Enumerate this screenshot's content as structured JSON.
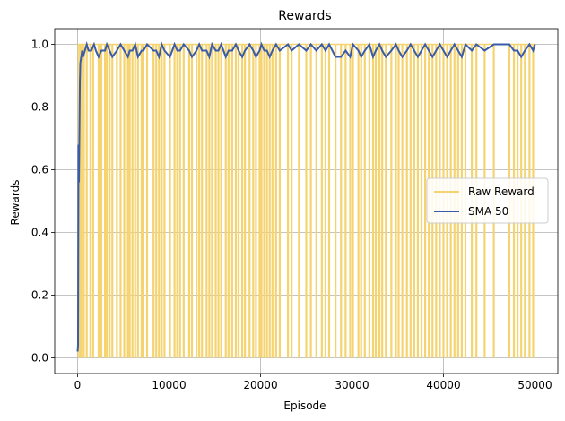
{
  "chart_data": {
    "type": "line",
    "title": "Rewards",
    "xlabel": "Episode",
    "ylabel": "Rewards",
    "xlim": [
      -2500,
      52500
    ],
    "ylim": [
      -0.05,
      1.05
    ],
    "xticks": [
      0,
      10000,
      20000,
      30000,
      40000,
      50000
    ],
    "yticks": [
      0.0,
      0.2,
      0.4,
      0.6,
      0.8,
      1.0
    ],
    "xtick_labels": [
      "0",
      "10000",
      "20000",
      "30000",
      "40000",
      "50000"
    ],
    "ytick_labels": [
      "0.0",
      "0.2",
      "0.4",
      "0.6",
      "0.8",
      "1.0"
    ],
    "grid": true,
    "legend_position": "center-right",
    "series": [
      {
        "name": "Raw Reward",
        "color": "#f5d470",
        "episodes": 50000,
        "baseline": 1.0,
        "failure_episodes": [
          300,
          600,
          1000,
          1400,
          1700,
          2300,
          2600,
          3000,
          3200,
          3500,
          3800,
          4300,
          4700,
          5100,
          5500,
          5700,
          6000,
          6300,
          6600,
          7000,
          7200,
          7600,
          8300,
          8600,
          8900,
          9200,
          9500,
          10100,
          10600,
          10900,
          11200,
          11600,
          12200,
          12500,
          13000,
          13300,
          13600,
          14100,
          14400,
          14700,
          15100,
          15400,
          15700,
          16200,
          16500,
          16900,
          17300,
          17600,
          18000,
          18300,
          18800,
          19200,
          19500,
          19900,
          20100,
          20400,
          20700,
          21000,
          21300,
          21700,
          22100,
          23000,
          23400,
          24200,
          25000,
          25500,
          26100,
          26700,
          27100,
          27500,
          28200,
          28800,
          29300,
          29800,
          30100,
          30700,
          31000,
          31400,
          31900,
          32300,
          32600,
          33000,
          33300,
          33700,
          34300,
          34800,
          35100,
          35500,
          36000,
          36400,
          36800,
          37200,
          37600,
          38000,
          38400,
          38800,
          39200,
          39600,
          40000,
          40400,
          40800,
          41200,
          41600,
          42000,
          42400,
          43100,
          43600,
          44500,
          45500,
          47200,
          47700,
          48100,
          48500,
          48900,
          49400,
          49800
        ]
      },
      {
        "name": "SMA 50",
        "color": "#3a5ca8",
        "x": [
          0,
          50,
          100,
          150,
          200,
          250,
          300,
          400,
          500,
          600,
          800,
          1000,
          1200,
          1500,
          1800,
          2000,
          2300,
          2600,
          3000,
          3200,
          3500,
          3800,
          4300,
          4700,
          5100,
          5500,
          5700,
          6000,
          6300,
          6600,
          7000,
          7200,
          7600,
          8300,
          8600,
          8900,
          9200,
          9500,
          10100,
          10600,
          10900,
          11200,
          11600,
          12200,
          12500,
          13000,
          13300,
          13600,
          14100,
          14400,
          14700,
          15100,
          15400,
          15700,
          16200,
          16500,
          16900,
          17300,
          17600,
          18000,
          18300,
          18800,
          19200,
          19500,
          19900,
          20100,
          20400,
          20700,
          21000,
          21300,
          21700,
          22100,
          23000,
          23400,
          24200,
          25000,
          25500,
          26100,
          26700,
          27100,
          27500,
          28200,
          28800,
          29300,
          29800,
          30100,
          30700,
          31000,
          31400,
          31900,
          32300,
          32600,
          33000,
          33300,
          33700,
          34300,
          34800,
          35100,
          35500,
          36000,
          36400,
          36800,
          37200,
          37600,
          38000,
          38400,
          38800,
          39200,
          39600,
          40000,
          40400,
          40800,
          41200,
          41600,
          42000,
          42400,
          43100,
          43600,
          44500,
          45500,
          47200,
          47700,
          48100,
          48500,
          48900,
          49400,
          49800,
          50000
        ],
        "y": [
          0.02,
          0.04,
          0.68,
          0.56,
          0.72,
          0.88,
          0.94,
          0.96,
          0.98,
          0.96,
          0.98,
          1.0,
          0.98,
          0.98,
          1.0,
          0.98,
          0.96,
          0.98,
          0.98,
          1.0,
          0.98,
          0.96,
          0.98,
          1.0,
          0.98,
          0.96,
          0.98,
          0.98,
          1.0,
          0.96,
          0.98,
          0.98,
          1.0,
          0.98,
          0.98,
          0.96,
          1.0,
          0.98,
          0.96,
          1.0,
          0.98,
          0.98,
          1.0,
          0.98,
          0.96,
          0.98,
          1.0,
          0.98,
          0.98,
          0.96,
          1.0,
          0.98,
          0.98,
          1.0,
          0.96,
          0.98,
          0.98,
          1.0,
          0.98,
          0.96,
          0.98,
          1.0,
          0.98,
          0.96,
          0.98,
          1.0,
          0.98,
          0.98,
          0.96,
          0.98,
          1.0,
          0.98,
          1.0,
          0.98,
          1.0,
          0.98,
          1.0,
          0.98,
          1.0,
          0.98,
          1.0,
          0.96,
          0.96,
          0.98,
          0.96,
          1.0,
          0.98,
          0.96,
          0.98,
          1.0,
          0.96,
          0.98,
          1.0,
          0.98,
          0.96,
          0.98,
          1.0,
          0.98,
          0.96,
          0.98,
          1.0,
          0.98,
          0.96,
          0.98,
          1.0,
          0.98,
          0.96,
          0.98,
          1.0,
          0.98,
          0.96,
          0.98,
          1.0,
          0.98,
          0.96,
          1.0,
          0.98,
          1.0,
          0.98,
          1.0,
          1.0,
          0.98,
          0.98,
          0.96,
          0.98,
          1.0,
          0.98,
          1.0
        ]
      }
    ]
  }
}
